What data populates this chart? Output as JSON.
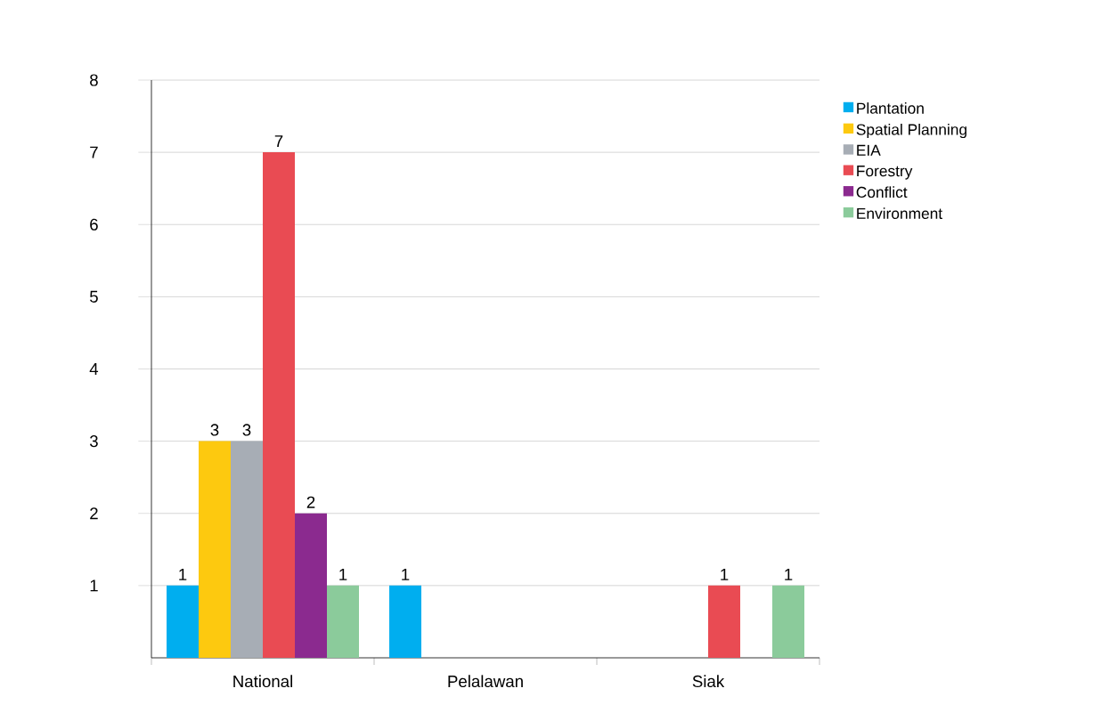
{
  "chart_data": {
    "type": "bar",
    "categories": [
      "National",
      "Pelalawan",
      "Siak"
    ],
    "series": [
      {
        "name": "Plantation",
        "color": "#00aeef",
        "values": [
          1,
          1,
          null
        ]
      },
      {
        "name": "Spatial Planning",
        "color": "#fdc90f",
        "values": [
          3,
          null,
          null
        ]
      },
      {
        "name": "EIA",
        "color": "#a7adb5",
        "values": [
          3,
          null,
          null
        ]
      },
      {
        "name": "Forestry",
        "color": "#e94b53",
        "values": [
          7,
          null,
          1
        ]
      },
      {
        "name": "Conflict",
        "color": "#8b2a8f",
        "values": [
          2,
          null,
          null
        ]
      },
      {
        "name": "Environment",
        "color": "#8bcb9b",
        "values": [
          1,
          null,
          1
        ]
      }
    ],
    "ylim": [
      0,
      8
    ],
    "yticks": [
      1,
      2,
      3,
      4,
      5,
      6,
      7,
      8
    ],
    "grid": "y",
    "legend": "top right",
    "data_labels": true
  }
}
